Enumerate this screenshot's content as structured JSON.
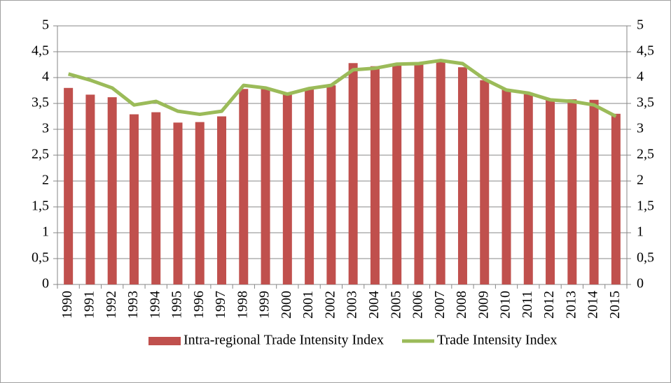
{
  "chart_data": {
    "type": "bar-line",
    "categories": [
      "1990",
      "1991",
      "1992",
      "1993",
      "1994",
      "1995",
      "1996",
      "1997",
      "1998",
      "1999",
      "2000",
      "2001",
      "2002",
      "2003",
      "2004",
      "2005",
      "2006",
      "2007",
      "2008",
      "2009",
      "2010",
      "2011",
      "2012",
      "2013",
      "2014",
      "2015"
    ],
    "series": [
      {
        "name": "Intra-regional Trade Intensity Index",
        "type": "bar",
        "color": "#c0504d",
        "values": [
          3.8,
          3.67,
          3.62,
          3.29,
          3.33,
          3.13,
          3.14,
          3.25,
          3.78,
          3.8,
          3.68,
          3.78,
          3.85,
          4.28,
          4.22,
          4.25,
          4.25,
          4.3,
          4.2,
          3.95,
          3.77,
          3.68,
          3.58,
          3.58,
          3.57,
          3.3
        ]
      },
      {
        "name": "Trade Intensity Index",
        "type": "line",
        "axis": "y2",
        "color": "#9bbb59",
        "values": [
          4.07,
          3.95,
          3.8,
          3.47,
          3.54,
          3.35,
          3.29,
          3.35,
          3.85,
          3.8,
          3.68,
          3.79,
          3.85,
          4.15,
          4.18,
          4.26,
          4.27,
          4.33,
          4.27,
          3.97,
          3.76,
          3.7,
          3.57,
          3.54,
          3.47,
          3.25
        ]
      }
    ],
    "ylim": [
      0,
      5
    ],
    "yticks": [
      0,
      {
        "value": 0.5,
        "label": "0,5"
      },
      1,
      {
        "value": 1.5,
        "label": "1,5"
      },
      2,
      {
        "value": 2.5,
        "label": "2,5"
      },
      3,
      {
        "value": 3.5,
        "label": "3,5"
      },
      4,
      {
        "value": 4.5,
        "label": "4,5"
      },
      5
    ],
    "y2lim": [
      0,
      5
    ],
    "y2ticks": [
      0,
      {
        "value": 0.5,
        "label": "0,5"
      },
      1,
      {
        "value": 1.5,
        "label": "1,5"
      },
      2,
      {
        "value": 2.5,
        "label": "2,5"
      },
      3,
      {
        "value": 3.5,
        "label": "3,5"
      },
      4,
      {
        "value": 4.5,
        "label": "4,5"
      },
      5
    ],
    "grid": true,
    "legend": "bottom"
  }
}
